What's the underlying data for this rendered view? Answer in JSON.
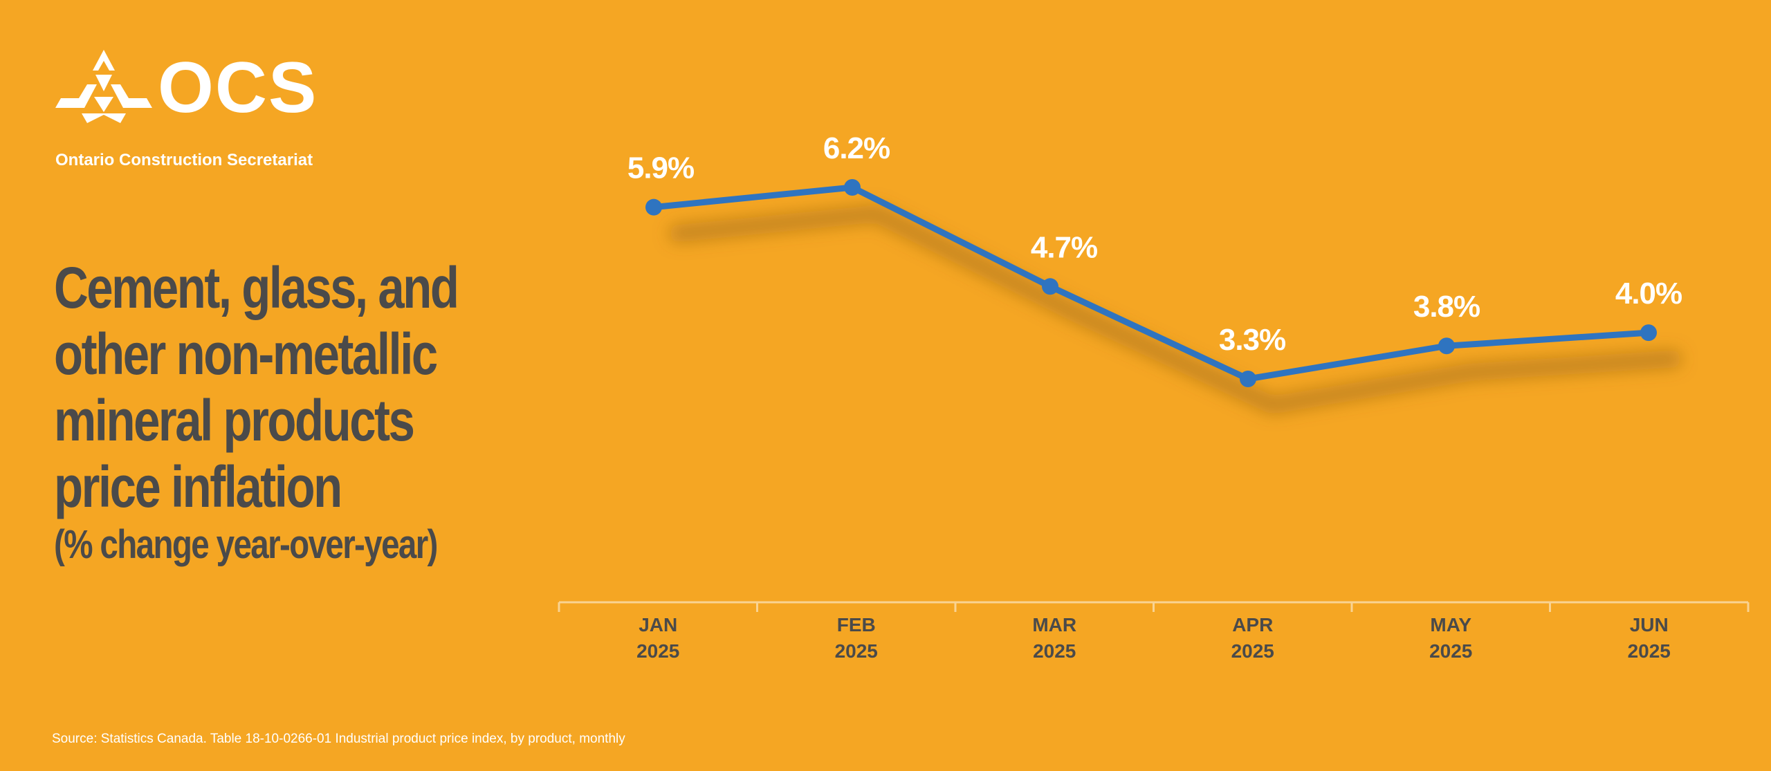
{
  "logo": {
    "mark": "OCS",
    "name": "Ontario Construction Secretariat"
  },
  "title": "Cement, glass, and other non-metallic mineral products price inflation",
  "subtitle": "(% change year-over-year)",
  "source": "Source: Statistics Canada. Table 18-10-0266-01  Industrial product price index, by product, monthly",
  "colors": {
    "background": "#F5A623",
    "line": "#2F74C0",
    "title_text": "#4a4a4a",
    "label_text": "#ffffff",
    "axis": "#F9D392"
  },
  "chart_data": {
    "type": "line",
    "categories": [
      "JAN 2025",
      "FEB 2025",
      "MAR 2025",
      "APR 2025",
      "MAY 2025",
      "JUN 2025"
    ],
    "category_lines": [
      [
        "JAN",
        "2025"
      ],
      [
        "FEB",
        "2025"
      ],
      [
        "MAR",
        "2025"
      ],
      [
        "APR",
        "2025"
      ],
      [
        "MAY",
        "2025"
      ],
      [
        "JUN",
        "2025"
      ]
    ],
    "series": [
      {
        "values": [
          5.9,
          6.2,
          4.7,
          3.3,
          3.8,
          4.0
        ]
      }
    ],
    "data_labels": [
      "5.9%",
      "6.2%",
      "4.7%",
      "3.3%",
      "3.8%",
      "4.0%"
    ],
    "title": "Cement, glass, and other non-metallic mineral products price inflation",
    "subtitle": "(% change year-over-year)",
    "xlabel": "",
    "ylabel": "",
    "grid": false,
    "legend": "none"
  }
}
